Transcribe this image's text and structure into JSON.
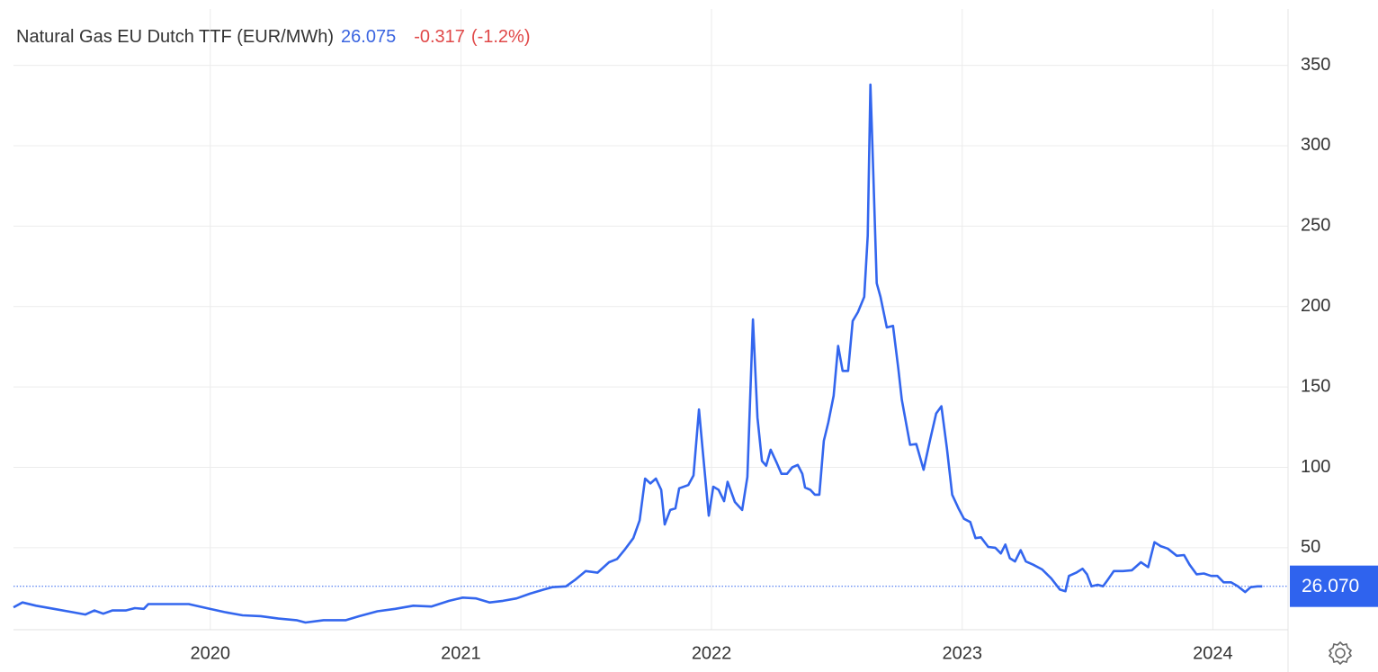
{
  "chart_data": {
    "type": "line",
    "title": "Natural Gas EU Dutch TTF (EUR/MWh)",
    "price": 26.075,
    "change": -0.317,
    "change_percent": "(-1.2%)",
    "last_value": {
      "value": 26.07,
      "label": "26.070"
    },
    "x": [
      2019.215,
      2019.251,
      2019.305,
      2019.376,
      2019.448,
      2019.502,
      2019.538,
      2019.573,
      2019.609,
      2019.663,
      2019.699,
      2019.735,
      2019.753,
      2019.824,
      2019.914,
      2019.986,
      2020.057,
      2020.129,
      2020.201,
      2020.272,
      2020.344,
      2020.38,
      2020.452,
      2020.541,
      2020.595,
      2020.667,
      2020.738,
      2020.81,
      2020.882,
      2020.953,
      2021.007,
      2021.061,
      2021.115,
      2021.168,
      2021.222,
      2021.276,
      2021.33,
      2021.365,
      2021.419,
      2021.455,
      2021.498,
      2021.545,
      2021.591,
      2021.623,
      2021.652,
      2021.688,
      2021.713,
      2021.735,
      2021.756,
      2021.778,
      2021.799,
      2021.813,
      2021.835,
      2021.856,
      2021.871,
      2021.907,
      2021.928,
      2021.95,
      2021.964,
      2021.989,
      2022.007,
      2022.028,
      2022.05,
      2022.064,
      2022.093,
      2022.122,
      2022.143,
      2022.165,
      2022.183,
      2022.201,
      2022.218,
      2022.236,
      2022.261,
      2022.279,
      2022.301,
      2022.322,
      2022.344,
      2022.362,
      2022.373,
      2022.394,
      2022.412,
      2022.43,
      2022.448,
      2022.466,
      2022.487,
      2022.505,
      2022.523,
      2022.545,
      2022.563,
      2022.584,
      2022.609,
      2022.623,
      2022.634,
      2022.645,
      2022.659,
      2022.674,
      2022.699,
      2022.724,
      2022.745,
      2022.759,
      2022.792,
      2022.817,
      2022.846,
      2022.871,
      2022.896,
      2022.917,
      2022.939,
      2022.96,
      2022.985,
      2023.007,
      2023.032,
      2023.053,
      2023.075,
      2023.104,
      2023.132,
      2023.154,
      2023.172,
      2023.19,
      2023.211,
      2023.233,
      2023.254,
      2023.283,
      2023.319,
      2023.355,
      2023.39,
      2023.412,
      2023.426,
      2023.455,
      2023.48,
      2023.498,
      2023.516,
      2023.541,
      2023.562,
      2023.58,
      2023.605,
      2023.641,
      2023.677,
      2023.713,
      2023.742,
      2023.767,
      2023.792,
      2023.82,
      2023.856,
      2023.885,
      2023.907,
      2023.935,
      2023.964,
      2023.993,
      2024.018,
      2024.043,
      2024.072,
      2024.1,
      2024.129,
      2024.151,
      2024.179,
      2024.197
    ],
    "series": [
      {
        "name": "Natural Gas EU Dutch TTF",
        "color": "#3366ee",
        "values": [
          13,
          16,
          14,
          12,
          10,
          8.5,
          11,
          9,
          11,
          11,
          12.5,
          12,
          15,
          15,
          15,
          12.5,
          10,
          8,
          7.5,
          6,
          5,
          3.5,
          5,
          5,
          7.5,
          10.5,
          12,
          14,
          13.5,
          17,
          19,
          18.5,
          16,
          17,
          18.5,
          21.5,
          24,
          25.5,
          26,
          30,
          35.5,
          34.5,
          41,
          43,
          48.5,
          56,
          67,
          93,
          90,
          93,
          86,
          64.5,
          73.5,
          74.5,
          87,
          89,
          95,
          136,
          112,
          70,
          88,
          86,
          79,
          91,
          78.5,
          73.5,
          94,
          192,
          131,
          104,
          101,
          111,
          102.5,
          96,
          96,
          100,
          101.5,
          96,
          87.5,
          86,
          83,
          83,
          116.5,
          128,
          144.5,
          175.5,
          160,
          160,
          191,
          196.5,
          206,
          244,
          338,
          284.5,
          214.5,
          206,
          187,
          188,
          161.5,
          142,
          114,
          114.5,
          98.5,
          116.5,
          133.5,
          138,
          112,
          83,
          74.5,
          68,
          66,
          56,
          56.5,
          50.5,
          50,
          46.5,
          52,
          43.5,
          41.5,
          48.5,
          41.5,
          39.5,
          36.5,
          31,
          24,
          23,
          32.5,
          34.5,
          37,
          33.5,
          26,
          27,
          26,
          30,
          35.5,
          35.5,
          36,
          41,
          38,
          53.5,
          51,
          49.5,
          45,
          45.5,
          39.5,
          33.5,
          34,
          32.5,
          32.5,
          28.5,
          28.5,
          26,
          22.5,
          25.5,
          26,
          26
        ]
      }
    ],
    "xlim": [
      2019.215,
      2024.3
    ],
    "xticks": [
      2020,
      2021,
      2022,
      2023,
      2024
    ],
    "ylim": [
      0,
      385
    ],
    "yticks": [
      50,
      100,
      150,
      200,
      250,
      300,
      350
    ],
    "grid": true
  }
}
